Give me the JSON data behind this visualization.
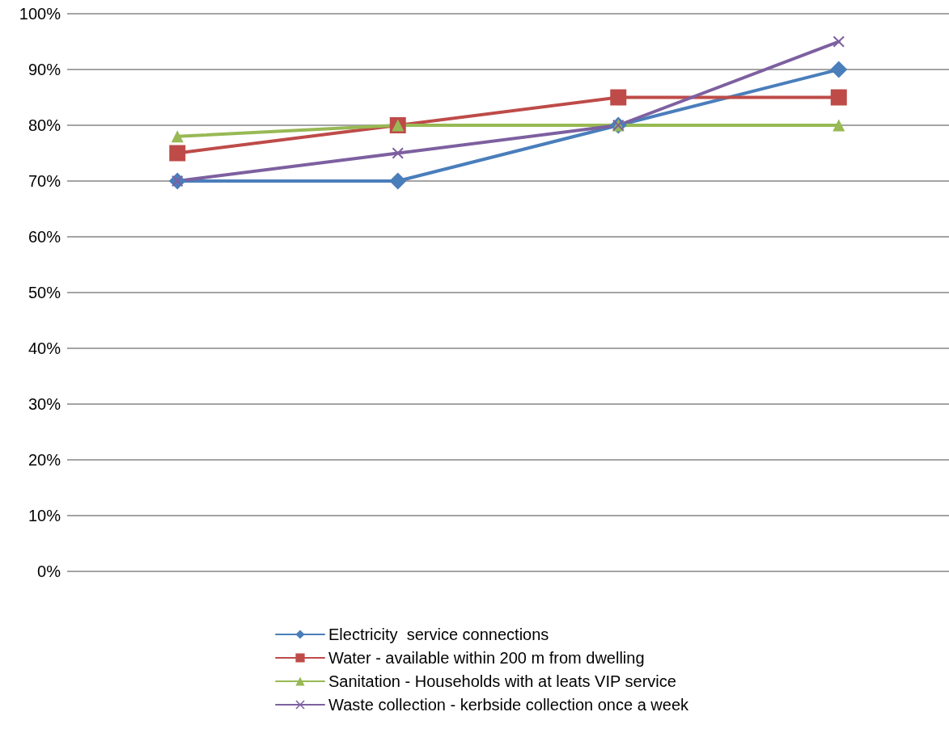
{
  "chart_data": {
    "type": "line",
    "categories": [
      null,
      null,
      null,
      null
    ],
    "series": [
      {
        "name": "Electricity  service connections",
        "color": "#4a7ebb",
        "marker": "diamond",
        "values": [
          70,
          70,
          80,
          90
        ]
      },
      {
        "name": "Water - available within 200 m from dwelling",
        "color": "#be4b48",
        "marker": "square",
        "values": [
          75,
          80,
          85,
          85
        ]
      },
      {
        "name": "Sanitation - Households with at leats VIP service",
        "color": "#98b954",
        "marker": "triangle",
        "values": [
          78,
          80,
          80,
          80
        ]
      },
      {
        "name": "Waste collection - kerbside collection once a week",
        "color": "#7d60a0",
        "marker": "cross",
        "values": [
          70,
          75,
          80,
          95
        ]
      }
    ],
    "ylim": [
      0,
      100
    ],
    "yticks": [
      {
        "value": 0,
        "label": "0%"
      },
      {
        "value": 10,
        "label": "10%"
      },
      {
        "value": 20,
        "label": "20%"
      },
      {
        "value": 30,
        "label": "30%"
      },
      {
        "value": 40,
        "label": "40%"
      },
      {
        "value": 50,
        "label": "50%"
      },
      {
        "value": 60,
        "label": "60%"
      },
      {
        "value": 70,
        "label": "70%"
      },
      {
        "value": 80,
        "label": "80%"
      },
      {
        "value": 90,
        "label": "90%"
      },
      {
        "value": 100,
        "label": "100%"
      }
    ],
    "grid": "y",
    "legend": "bottom",
    "line_style": "solid"
  }
}
